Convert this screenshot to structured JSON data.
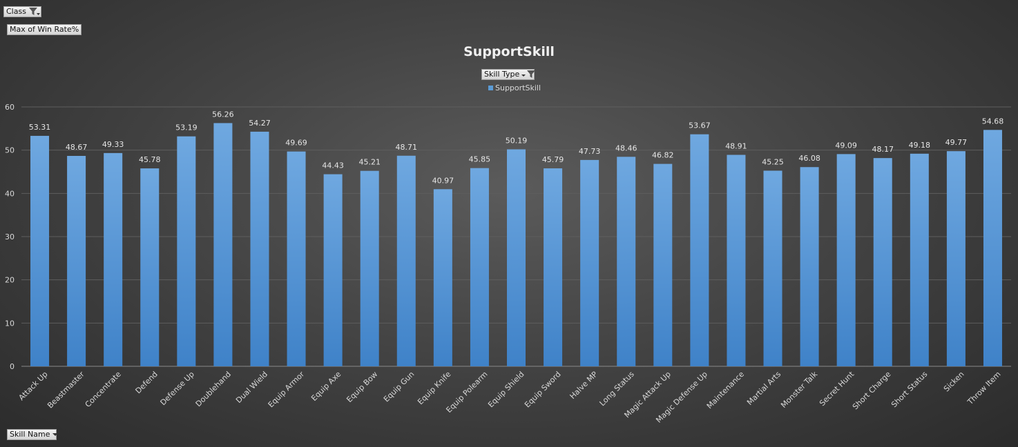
{
  "filters": {
    "class_label": "Class",
    "value_field_label": "Max of Win Rate%",
    "legend_field_label": "Skill Type",
    "axis_field_label": "Skill Name"
  },
  "icons": {
    "filter": "filter-funnel-icon",
    "dropdown": "chevron-down-icon"
  },
  "colors": {
    "bar": "#5b9bd5",
    "background": "#404040"
  },
  "chart_data": {
    "type": "bar",
    "title": "SupportSkill",
    "xlabel": "",
    "ylabel": "",
    "ylim": [
      0,
      60
    ],
    "yticks": [
      0,
      10,
      20,
      30,
      40,
      50,
      60
    ],
    "grid": true,
    "legend_position": "top-center",
    "categories": [
      "Attack Up",
      "Beastmaster",
      "Concentrate",
      "Defend",
      "Defense Up",
      "Doublehand",
      "Dual Wield",
      "Equip Armor",
      "Equip Axe",
      "Equip Bow",
      "Equip Gun",
      "Equip Knife",
      "Equip Polearm",
      "Equip Shield",
      "Equip Sword",
      "Halve MP",
      "Long Status",
      "Magic Attack Up",
      "Magic Defense Up",
      "Maintenance",
      "Martial Arts",
      "Monster Talk",
      "Secret Hunt",
      "Short Charge",
      "Short Status",
      "Sicken",
      "Throw Item"
    ],
    "series": [
      {
        "name": "SupportSkill",
        "values": [
          53.31,
          48.67,
          49.33,
          45.78,
          53.19,
          56.26,
          54.27,
          49.69,
          44.43,
          45.21,
          48.71,
          40.97,
          45.85,
          50.19,
          45.79,
          47.73,
          48.46,
          46.82,
          53.67,
          48.91,
          45.25,
          46.08,
          49.09,
          48.17,
          49.18,
          49.77,
          54.68
        ]
      }
    ]
  }
}
